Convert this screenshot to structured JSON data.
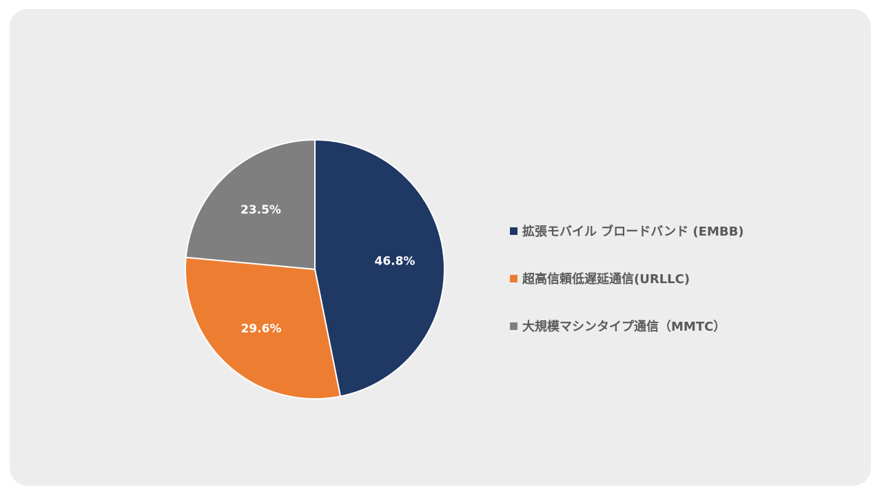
{
  "chart_data": {
    "type": "pie",
    "title": "",
    "legend_position": "right",
    "slices": [
      {
        "label": "拡張モバイル ブロードバンド (EMBB)",
        "value": 46.8,
        "value_label": "46.8%",
        "color": "#1f3864"
      },
      {
        "label": "超高信頼低遅延通信(URLLC)",
        "value": 29.6,
        "value_label": "29.6%",
        "color": "#ed7d31"
      },
      {
        "label": "大規模マシンタイプ通信（MMTC）",
        "value": 23.5,
        "value_label": "23.5%",
        "color": "#7f7f7f"
      }
    ],
    "start_direction": "top",
    "clockwise": true
  },
  "page": {
    "background_color": "#ededed"
  }
}
